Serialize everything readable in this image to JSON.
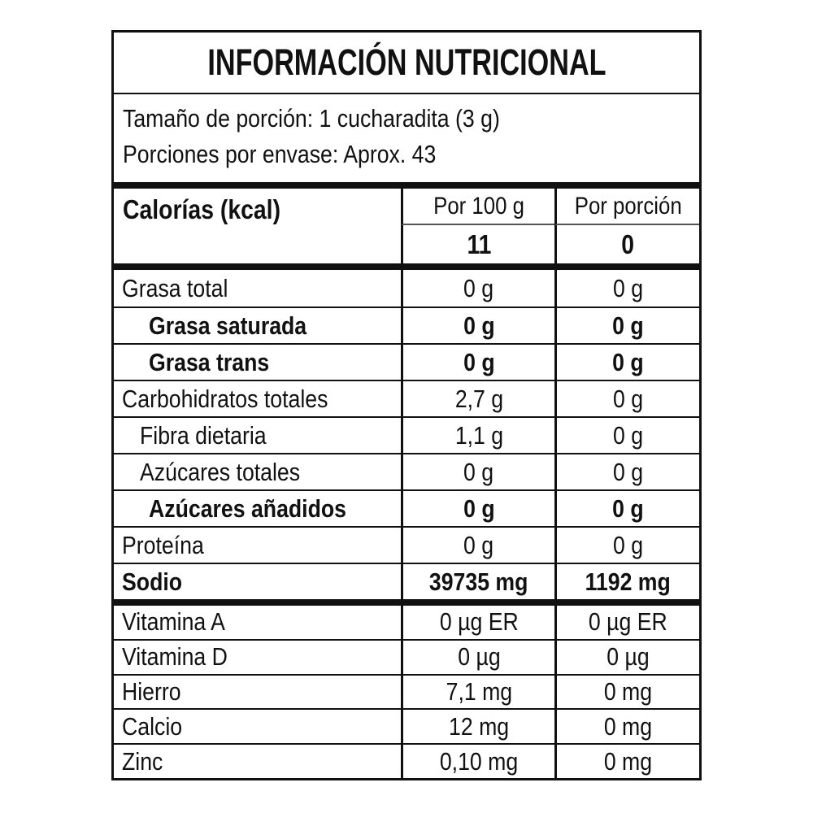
{
  "colors": {
    "border": "#111111",
    "background": "#ffffff",
    "text": "#111111"
  },
  "label": {
    "title": "INFORMACIÓN NUTRICIONAL",
    "serving": {
      "serving_size": "Tamaño de porción: 1 cucharadita (3 g)",
      "servings_per_container": "Porciones por envase: Aprox. 43"
    },
    "calories": {
      "name": "Calorías (kcal)",
      "per100_header": "Por 100 g",
      "portion_header": "Por porción",
      "per100_value": "11",
      "portion_value": "0"
    },
    "rows": [
      {
        "name": "Grasa total",
        "per100": "0 g",
        "portion": "0 g"
      },
      {
        "name": "Grasa saturada",
        "per100": "0 g",
        "portion": "0 g"
      },
      {
        "name": "Grasa trans",
        "per100": "0 g",
        "portion": "0 g"
      },
      {
        "name": "Carbohidratos totales",
        "per100": "2,7 g",
        "portion": "0 g"
      },
      {
        "name": "Fibra dietaria",
        "per100": "1,1 g",
        "portion": "0 g"
      },
      {
        "name": "Azúcares totales",
        "per100": "0 g",
        "portion": "0 g"
      },
      {
        "name": "Azúcares añadidos",
        "per100": "0 g",
        "portion": "0 g"
      },
      {
        "name": "Proteína",
        "per100": "0 g",
        "portion": "0 g"
      },
      {
        "name": "Sodio",
        "per100": "39735 mg",
        "portion": "1192 mg"
      }
    ],
    "micro_rows": [
      {
        "name": "Vitamina A",
        "per100": "0 µg ER",
        "portion": "0 µg ER"
      },
      {
        "name": "Vitamina D",
        "per100": "0 µg",
        "portion": "0 µg"
      },
      {
        "name": "Hierro",
        "per100": "7,1 mg",
        "portion": "0 mg"
      },
      {
        "name": "Calcio",
        "per100": "12 mg",
        "portion": "0 mg"
      },
      {
        "name": "Zinc",
        "per100": "0,10 mg",
        "portion": "0 mg"
      }
    ]
  }
}
